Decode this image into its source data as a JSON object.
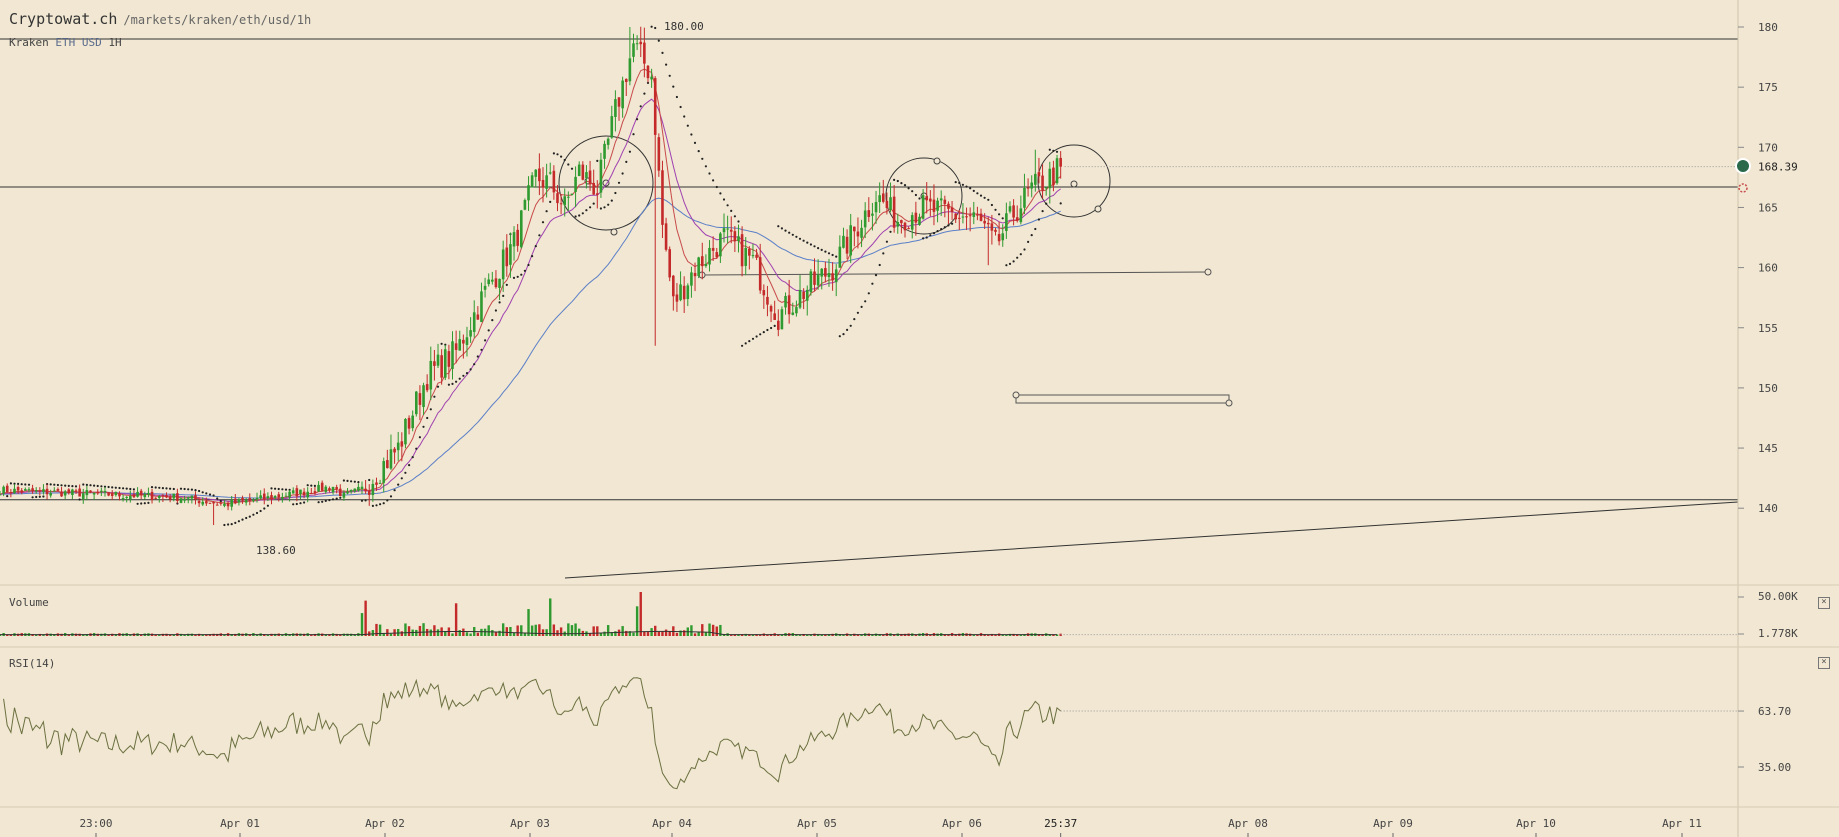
{
  "header": {
    "site": "Cryptowat.ch",
    "path": "/markets/kraken/eth/usd/1h",
    "exchange": "Kraken",
    "pair": "ETH USD",
    "interval": "1H"
  },
  "panes": {
    "volume_label": "Volume",
    "rsi_label": "RSI(14)",
    "volume_close": "×",
    "rsi_close": "×"
  },
  "chart_data": [
    {
      "type": "candlestick",
      "pane": "price",
      "y_ticks": [
        180,
        175,
        170,
        165,
        160,
        155,
        150,
        145,
        140
      ],
      "ylim": [
        136.6,
        182.0
      ],
      "last_price": 168.39,
      "current_time_label": "25:37",
      "high_label": "180.00",
      "low_label": "138.60",
      "x_ticks": [
        "23:00",
        "Apr 01",
        "Apr 02",
        "Apr 03",
        "Apr 04",
        "Apr 05",
        "Apr 06",
        "Apr 08",
        "Apr 09",
        "Apr 10",
        "Apr 11"
      ],
      "anchors": [
        [
          0,
          141.5
        ],
        [
          25,
          141.2
        ],
        [
          50,
          140.9
        ],
        [
          62,
          140.3
        ],
        [
          75,
          140.9
        ],
        [
          92,
          141.8
        ],
        [
          95,
          141.0
        ],
        [
          100,
          141.6
        ],
        [
          110,
          145.0
        ],
        [
          118,
          151.0
        ],
        [
          126,
          153.0
        ],
        [
          134,
          158.0
        ],
        [
          142,
          162.0
        ],
        [
          148,
          167.5
        ],
        [
          152,
          167.0
        ],
        [
          156,
          165.0
        ],
        [
          160,
          168.0
        ],
        [
          165,
          166.5
        ],
        [
          170,
          173.0
        ],
        [
          175,
          178.5
        ],
        [
          180,
          176.0
        ],
        [
          183,
          163.5
        ],
        [
          186,
          157.0
        ],
        [
          192,
          160.0
        ],
        [
          200,
          162.5
        ],
        [
          208,
          160.5
        ],
        [
          215,
          156.0
        ],
        [
          222,
          158.0
        ],
        [
          230,
          160.0
        ],
        [
          236,
          163.0
        ],
        [
          242,
          166.0
        ],
        [
          248,
          164.0
        ],
        [
          255,
          165.0
        ],
        [
          262,
          164.5
        ],
        [
          270,
          164.0
        ],
        [
          275,
          161.8
        ],
        [
          280,
          164.5
        ],
        [
          285,
          166.5
        ],
        [
          290,
          167.5
        ],
        [
          293,
          168.39
        ]
      ],
      "horizontal_lines": [
        179.0,
        166.7,
        140.7
      ],
      "ema_short_color": "#c84a4a",
      "ema_long_color": "#a040b0",
      "ma_color": "#5b7fc8",
      "sar_color": "#222222",
      "bull_color": "#2f9a2f",
      "bear_color": "#c42a2a"
    },
    {
      "type": "bar",
      "pane": "volume",
      "y_ticks_labels": [
        "50.00K",
        "1.778K"
      ],
      "y_ticks_values": [
        50000,
        1778
      ],
      "ylim": [
        0,
        58000
      ]
    },
    {
      "type": "line",
      "pane": "rsi",
      "period": 14,
      "last_value_label": "63.70",
      "y_ticks_labels": [
        "63.70",
        "35.00"
      ],
      "y_ticks_values": [
        63.7,
        35.0
      ],
      "ylim": [
        15,
        95
      ],
      "line_color": "#6b7040"
    }
  ]
}
